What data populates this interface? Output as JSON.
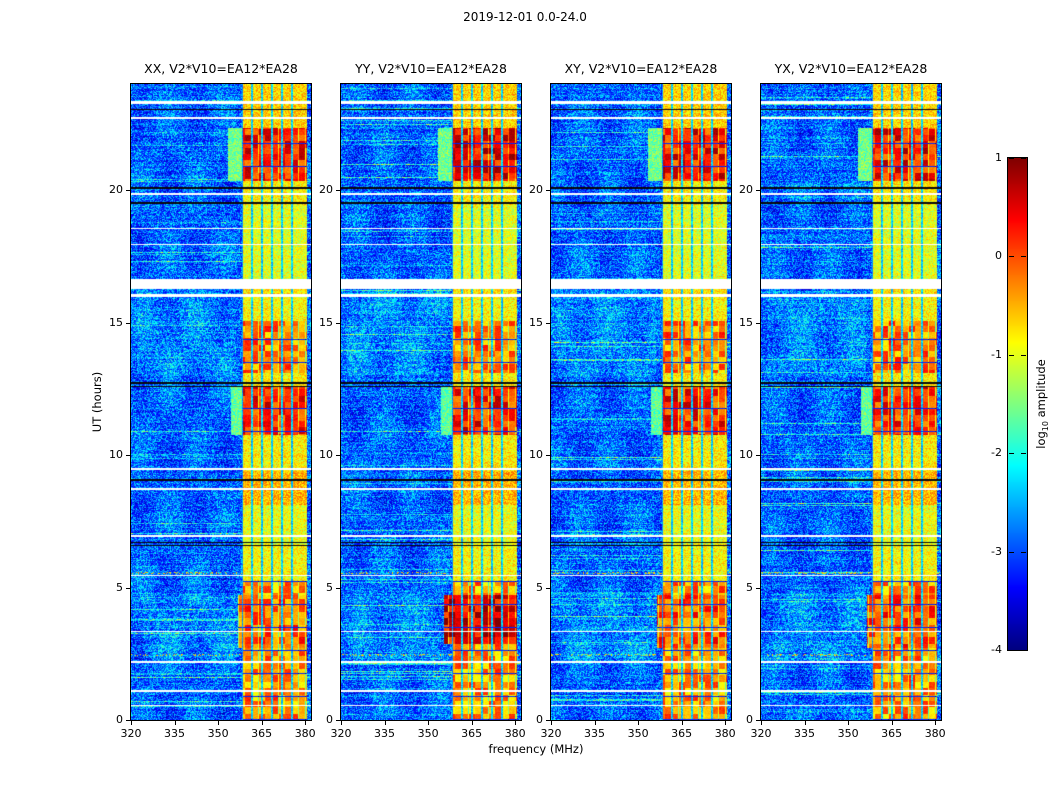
{
  "figure": {
    "title": "2019-12-01 0.0-24.0",
    "xlabel": "frequency (MHz)",
    "ylabel": "UT (hours)",
    "colorbar_label_prefix": "log",
    "colorbar_label_sub": "10",
    "colorbar_label_suffix": " amplitude"
  },
  "chart_data": {
    "type": "heatmap",
    "title": "2019-12-01 0.0-24.0",
    "description": "Four dynamic-spectrum panels (time vs frequency, jet colormap of log10 amplitude from -4 to 1) for correlation products XX, YY, XY, YX of baseline V2*V10=EA12*EA28 on 2019-12-01, 0.0-24.0 UT. Blue noise floor near 10^-3.3. A persistent bright band spans ~358-381 MHz (yellow/orange) with narrow dark channels near 361.7, 365.1, 368.6, 372.0 and 375.4 MHz. Strongest red intervals (~10^0) occur ~10.8-12.5 UT and ~20.4-22.3 UT in all panels; YY also ~2.9-4.7 UT. Full-width white rows are data gaps (largest ~16.3-16.6 UT); thin black rows are flagged times.",
    "panels": [
      {
        "title": "XX, V2*V10=EA12*EA28",
        "seed": 13,
        "extra_blocks": [
          {
            "hours": [
              2.7,
              4.7
            ],
            "freq": [
              357.0,
              380.6
            ],
            "amp": -0.25
          }
        ]
      },
      {
        "title": "YY, V2*V10=EA12*EA28",
        "seed": 47,
        "extra_blocks": [
          {
            "hours": [
              2.85,
              4.7
            ],
            "freq": [
              355.5,
              380.6
            ],
            "amp": 0.4
          },
          {
            "hours": [
              20.35,
              22.35
            ],
            "freq": [
              358.3,
              380.6
            ],
            "amp": 0.3
          }
        ]
      },
      {
        "title": "XY, V2*V10=EA12*EA28",
        "seed": 83,
        "extra_blocks": [
          {
            "hours": [
              2.7,
              4.7
            ],
            "freq": [
              356.5,
              380.6
            ],
            "amp": -0.15
          }
        ]
      },
      {
        "title": "YX, V2*V10=EA12*EA28",
        "seed": 151,
        "extra_blocks": [
          {
            "hours": [
              2.7,
              4.7
            ],
            "freq": [
              356.5,
              380.6
            ],
            "amp": -0.1
          }
        ]
      }
    ],
    "x_axis": {
      "label": "frequency (MHz)",
      "range": [
        320,
        382
      ],
      "ticks": [
        320,
        335,
        350,
        365,
        380
      ]
    },
    "y_axis": {
      "label": "UT (hours)",
      "range": [
        0,
        24
      ],
      "ticks": [
        0,
        5,
        10,
        15,
        20
      ]
    },
    "colorbar": {
      "label": "log10 amplitude",
      "range": [
        -4,
        1
      ],
      "ticks": [
        "1",
        "0",
        "-1",
        "-2",
        "-3",
        "-4"
      ]
    },
    "noise_floor_log10": [
      -3.5,
      -2.2
    ],
    "band": {
      "freq": [
        358.3,
        380.6
      ],
      "base": -0.8,
      "dark_lines_mhz": [
        361.7,
        365.1,
        368.6,
        372.0,
        375.4
      ]
    },
    "blocks": [
      {
        "hours": [
          0.0,
          5.25
        ],
        "freq": [
          358.3,
          380.6
        ],
        "amp": -0.45
      },
      {
        "hours": [
          5.25,
          6.65
        ],
        "freq": [
          358.3,
          380.6
        ],
        "amp": -0.9
      },
      {
        "hours": [
          6.65,
          8.1
        ],
        "freq": [
          358.3,
          380.6
        ],
        "amp": -1.0
      },
      {
        "hours": [
          8.1,
          9.4
        ],
        "freq": [
          358.3,
          380.6
        ],
        "amp": -0.55
      },
      {
        "hours": [
          9.4,
          10.75
        ],
        "freq": [
          358.3,
          380.6
        ],
        "amp": -0.85
      },
      {
        "hours": [
          10.75,
          12.55
        ],
        "freq": [
          358.3,
          380.6
        ],
        "amp": 0.12
      },
      {
        "hours": [
          10.75,
          12.55
        ],
        "freq": [
          354.5,
          358.3
        ],
        "amp": -1.7
      },
      {
        "hours": [
          12.55,
          13.1
        ],
        "freq": [
          358.3,
          380.6
        ],
        "amp": -0.85
      },
      {
        "hours": [
          13.1,
          15.05
        ],
        "freq": [
          358.3,
          380.6
        ],
        "amp": -0.35
      },
      {
        "hours": [
          15.05,
          16.0
        ],
        "freq": [
          358.3,
          380.6
        ],
        "amp": -0.9
      },
      {
        "hours": [
          16.6,
          19.45
        ],
        "freq": [
          358.3,
          380.6
        ],
        "amp": -1.05
      },
      {
        "hours": [
          19.45,
          20.35
        ],
        "freq": [
          358.3,
          380.6
        ],
        "amp": -0.85
      },
      {
        "hours": [
          20.35,
          22.35
        ],
        "freq": [
          358.3,
          380.6
        ],
        "amp": 0.18
      },
      {
        "hours": [
          20.35,
          22.35
        ],
        "freq": [
          353.5,
          358.3
        ],
        "amp": -1.6
      },
      {
        "hours": [
          22.35,
          24.0
        ],
        "freq": [
          358.3,
          380.6
        ],
        "amp": -0.7
      }
    ],
    "white_gaps": [
      {
        "t": 16.45,
        "w": 0.4
      },
      {
        "t": 16.02,
        "w": 0.09
      },
      {
        "t": 23.3,
        "w": 0.09
      },
      {
        "t": 22.72,
        "w": 0.08
      },
      {
        "t": 19.85,
        "w": 0.09
      },
      {
        "t": 17.95,
        "w": 0.05
      },
      {
        "t": 18.55,
        "w": 0.05
      },
      {
        "t": 9.47,
        "w": 0.1
      },
      {
        "t": 8.72,
        "w": 0.06
      },
      {
        "t": 6.95,
        "w": 0.07
      },
      {
        "t": 5.45,
        "w": 0.06
      },
      {
        "t": 3.35,
        "w": 0.05
      },
      {
        "t": 2.2,
        "w": 0.07
      },
      {
        "t": 1.1,
        "w": 0.07
      },
      {
        "t": 0.55,
        "w": 0.05
      }
    ],
    "black_lines": [
      {
        "t": 20.07,
        "w": 0.07
      },
      {
        "t": 19.52,
        "w": 0.07
      },
      {
        "t": 23.05,
        "w": 0.05
      },
      {
        "t": 12.72,
        "w": 0.09
      },
      {
        "t": 12.58,
        "w": 0.05
      },
      {
        "t": 9.07,
        "w": 0.07
      },
      {
        "t": 6.7,
        "w": 0.06
      },
      {
        "t": 6.58,
        "w": 0.05
      }
    ],
    "patches": [
      {
        "hours": [
          2.2,
          4.8
        ],
        "freq": [
          324,
          356
        ]
      },
      {
        "hours": [
          13.0,
          16.2
        ],
        "freq": [
          322,
          356
        ]
      }
    ],
    "speck_rows": [
      5.55,
      2.45
    ]
  }
}
